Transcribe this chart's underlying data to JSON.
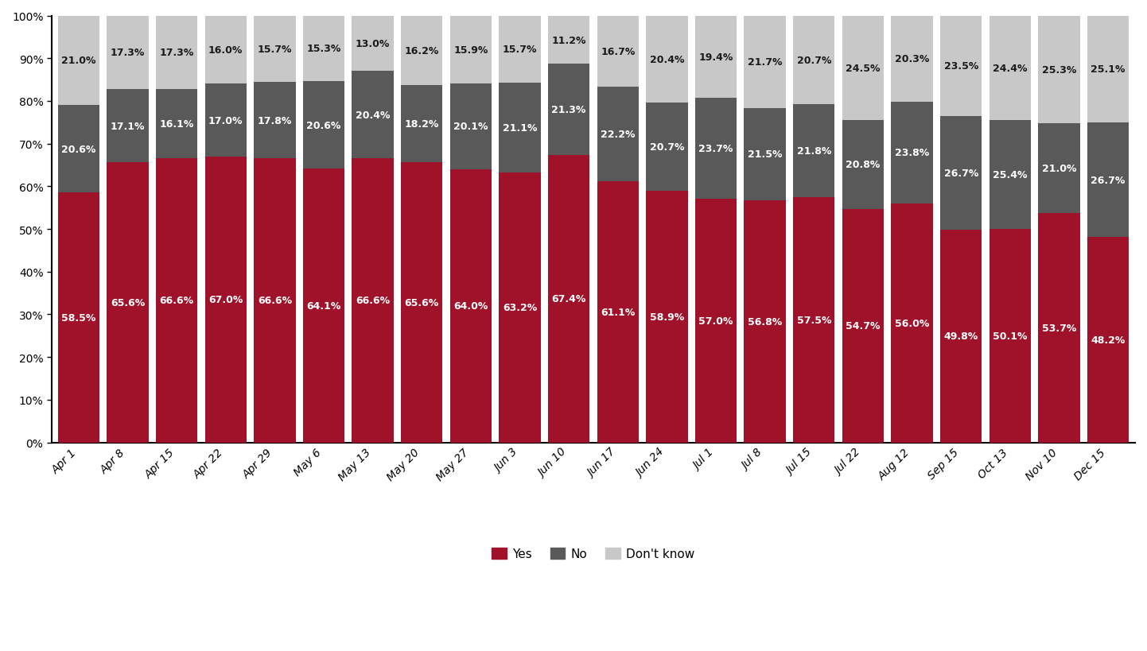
{
  "categories": [
    "Apr 1",
    "Apr 8",
    "Apr 15",
    "Apr 22",
    "Apr 29",
    "May 6",
    "May 13",
    "May 20",
    "May 27",
    "Jun 3",
    "Jun 10",
    "Jun 17",
    "Jun 24",
    "Jul 1",
    "Jul 8",
    "Jul 15",
    "Jul 22",
    "Aug 12",
    "Sep 15",
    "Oct 13",
    "Nov 10",
    "Dec 15"
  ],
  "yes": [
    58.5,
    65.6,
    66.6,
    67.0,
    66.6,
    64.1,
    66.6,
    65.6,
    64.0,
    63.2,
    67.4,
    61.1,
    58.9,
    57.0,
    56.8,
    57.5,
    54.7,
    56.0,
    49.8,
    50.1,
    53.7,
    48.2
  ],
  "no": [
    20.6,
    17.1,
    16.1,
    17.0,
    17.8,
    20.6,
    20.4,
    18.2,
    20.1,
    21.1,
    21.3,
    22.2,
    20.7,
    23.7,
    21.5,
    21.8,
    20.8,
    23.8,
    26.7,
    25.4,
    21.0,
    26.7
  ],
  "dk": [
    21.0,
    17.3,
    17.3,
    16.0,
    15.7,
    15.3,
    13.0,
    16.2,
    15.9,
    15.7,
    11.2,
    16.7,
    20.4,
    19.4,
    21.7,
    20.7,
    24.5,
    20.3,
    23.5,
    24.4,
    25.3,
    25.1
  ],
  "yes_color": "#A0122A",
  "no_color": "#595959",
  "dk_color": "#C8C8C8",
  "background_color": "#FFFFFF",
  "plot_bg_color": "#FFFFFF",
  "text_color_white": "#FFFFFF",
  "text_color_dark": "#1A1A1A",
  "ylim": [
    0,
    100
  ],
  "yticks": [
    0,
    10,
    20,
    30,
    40,
    50,
    60,
    70,
    80,
    90,
    100
  ],
  "ytick_labels": [
    "0%",
    "10%",
    "20%",
    "30%",
    "40%",
    "50%",
    "60%",
    "70%",
    "80%",
    "90%",
    "100%"
  ]
}
